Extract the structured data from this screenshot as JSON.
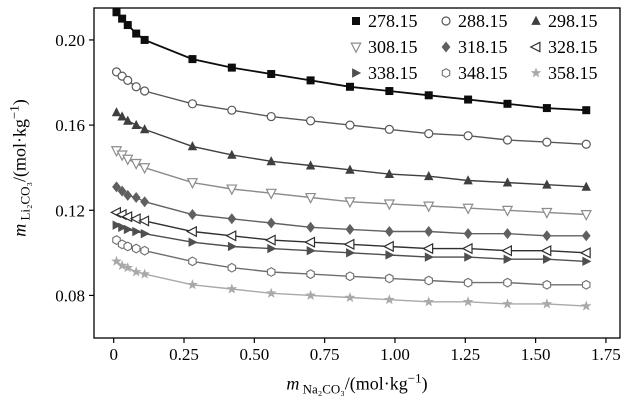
{
  "chart_data": {
    "type": "line",
    "title": "",
    "xlabel_parts": [
      {
        "t": "m",
        "s": "i"
      },
      {
        "t": " Na₂CO₃",
        "s": "sub"
      },
      {
        "t": "/(mol·kg",
        "s": "n"
      },
      {
        "t": "−1",
        "s": "sup"
      },
      {
        "t": ")",
        "s": "n"
      }
    ],
    "ylabel_parts": [
      {
        "t": "m",
        "s": "i"
      },
      {
        "t": " Li₂CO₃",
        "s": "sub"
      },
      {
        "t": "/(mol·kg",
        "s": "n"
      },
      {
        "t": "−1",
        "s": "sup"
      },
      {
        "t": ")",
        "s": "n"
      }
    ],
    "xlim": [
      -0.07,
      1.8
    ],
    "ylim": [
      0.06,
      0.215
    ],
    "xticks": [
      {
        "v": 0,
        "l": "0"
      },
      {
        "v": 0.25,
        "l": "0.25"
      },
      {
        "v": 0.5,
        "l": "0.50"
      },
      {
        "v": 0.75,
        "l": "0.75"
      },
      {
        "v": 1.0,
        "l": "1.00"
      },
      {
        "v": 1.25,
        "l": "1.25"
      },
      {
        "v": 1.5,
        "l": "1.50"
      },
      {
        "v": 1.75,
        "l": "1.75"
      }
    ],
    "yticks": [
      {
        "v": 0.08,
        "l": "0.08"
      },
      {
        "v": 0.12,
        "l": "0.12"
      },
      {
        "v": 0.16,
        "l": "0.16"
      },
      {
        "v": 0.2,
        "l": "0.20"
      }
    ],
    "legend_position": "top-right-inside",
    "grid": false,
    "x": [
      0.01,
      0.03,
      0.05,
      0.08,
      0.11,
      0.28,
      0.42,
      0.56,
      0.7,
      0.84,
      0.98,
      1.12,
      1.26,
      1.4,
      1.54,
      1.68
    ],
    "series": [
      {
        "name": "278.15",
        "marker": "square",
        "open": false,
        "color": "#0d0d0d",
        "values": [
          0.213,
          0.21,
          0.207,
          0.203,
          0.2,
          0.191,
          0.187,
          0.184,
          0.181,
          0.178,
          0.176,
          0.174,
          0.172,
          0.17,
          0.168,
          0.167
        ]
      },
      {
        "name": "288.15",
        "marker": "circle",
        "open": true,
        "color": "#585858",
        "values": [
          0.185,
          0.183,
          0.181,
          0.178,
          0.176,
          0.17,
          0.167,
          0.164,
          0.162,
          0.16,
          0.158,
          0.156,
          0.155,
          0.153,
          0.152,
          0.151
        ]
      },
      {
        "name": "298.15",
        "marker": "triangle-up",
        "open": false,
        "color": "#3f3f3f",
        "values": [
          0.166,
          0.164,
          0.162,
          0.16,
          0.158,
          0.15,
          0.146,
          0.143,
          0.141,
          0.139,
          0.137,
          0.136,
          0.134,
          0.133,
          0.132,
          0.131
        ]
      },
      {
        "name": "308.15",
        "marker": "triangle-down",
        "open": true,
        "color": "#8c8c8c",
        "values": [
          0.148,
          0.146,
          0.144,
          0.142,
          0.14,
          0.133,
          0.13,
          0.128,
          0.126,
          0.124,
          0.123,
          0.122,
          0.121,
          0.12,
          0.119,
          0.118
        ]
      },
      {
        "name": "318.15",
        "marker": "diamond",
        "open": false,
        "color": "#606060",
        "values": [
          0.131,
          0.129,
          0.127,
          0.126,
          0.124,
          0.118,
          0.116,
          0.114,
          0.112,
          0.111,
          0.11,
          0.11,
          0.109,
          0.109,
          0.108,
          0.108
        ]
      },
      {
        "name": "328.15",
        "marker": "triangle-left",
        "open": true,
        "color": "#2f2f2f",
        "values": [
          0.119,
          0.118,
          0.117,
          0.116,
          0.115,
          0.11,
          0.108,
          0.106,
          0.105,
          0.104,
          0.103,
          0.102,
          0.102,
          0.101,
          0.101,
          0.1
        ]
      },
      {
        "name": "338.15",
        "marker": "triangle-right",
        "open": false,
        "color": "#4f4f4f",
        "values": [
          0.113,
          0.112,
          0.111,
          0.11,
          0.109,
          0.105,
          0.103,
          0.102,
          0.101,
          0.1,
          0.099,
          0.098,
          0.098,
          0.097,
          0.097,
          0.096
        ]
      },
      {
        "name": "348.15",
        "marker": "hexagon",
        "open": true,
        "color": "#6f6f6f",
        "values": [
          0.106,
          0.104,
          0.103,
          0.102,
          0.101,
          0.096,
          0.093,
          0.091,
          0.09,
          0.089,
          0.088,
          0.087,
          0.086,
          0.086,
          0.085,
          0.085
        ]
      },
      {
        "name": "358.15",
        "marker": "star",
        "open": false,
        "color": "#a9a9a9",
        "values": [
          0.096,
          0.094,
          0.093,
          0.091,
          0.09,
          0.085,
          0.083,
          0.081,
          0.08,
          0.079,
          0.078,
          0.077,
          0.077,
          0.076,
          0.076,
          0.075
        ]
      }
    ]
  }
}
